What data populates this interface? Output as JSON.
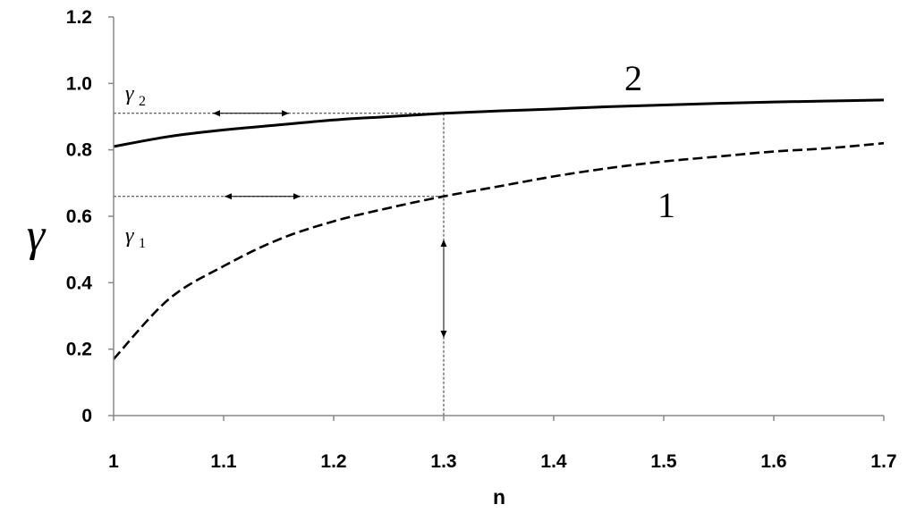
{
  "chart_data": {
    "type": "line",
    "xlabel": "n",
    "ylabel": "γ",
    "xlim": [
      1,
      1.7
    ],
    "ylim": [
      0,
      1.2
    ],
    "x_ticks": [
      "1",
      "1.1",
      "1.2",
      "1.3",
      "1.4",
      "1.5",
      "1.6",
      "1.7"
    ],
    "y_ticks": [
      "0",
      "0.2",
      "0.4",
      "0.6",
      "0.8",
      "1.0",
      "1.2"
    ],
    "grid": false,
    "series": [
      {
        "name": "1",
        "style": "dashed",
        "x": [
          1.0,
          1.05,
          1.1,
          1.15,
          1.2,
          1.25,
          1.3,
          1.35,
          1.4,
          1.45,
          1.5,
          1.55,
          1.6,
          1.65,
          1.7
        ],
        "y": [
          0.17,
          0.35,
          0.45,
          0.53,
          0.585,
          0.625,
          0.66,
          0.69,
          0.72,
          0.745,
          0.765,
          0.78,
          0.795,
          0.805,
          0.82
        ]
      },
      {
        "name": "2",
        "style": "solid",
        "x": [
          1.0,
          1.05,
          1.1,
          1.15,
          1.2,
          1.25,
          1.3,
          1.35,
          1.4,
          1.45,
          1.5,
          1.55,
          1.6,
          1.65,
          1.7
        ],
        "y": [
          0.81,
          0.84,
          0.86,
          0.875,
          0.89,
          0.9,
          0.91,
          0.917,
          0.923,
          0.93,
          0.935,
          0.94,
          0.944,
          0.947,
          0.95
        ]
      }
    ],
    "annotations": [
      {
        "id": "gamma2",
        "text": "γ",
        "sub": "2",
        "y": 0.91
      },
      {
        "id": "gamma1",
        "text": "γ",
        "sub": "1",
        "y": 0.66
      }
    ],
    "reference_x": 1.3
  }
}
